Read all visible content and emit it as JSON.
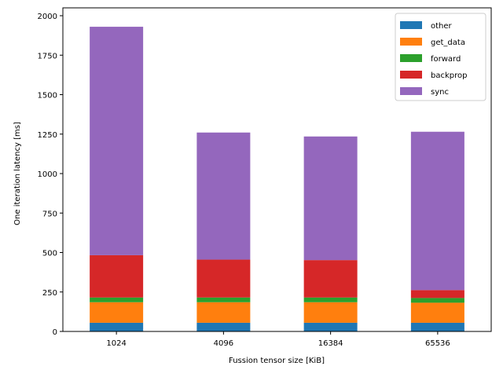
{
  "chart_data": {
    "type": "bar",
    "stacked": true,
    "title": "",
    "xlabel": "Fussion tensor size [KiB]",
    "ylabel": "One iteration latency [ms]",
    "ylim": [
      0,
      2000
    ],
    "yticks": [
      0,
      250,
      500,
      750,
      1000,
      1250,
      1500,
      1750,
      2000
    ],
    "categories": [
      "1024",
      "4096",
      "16384",
      "65536"
    ],
    "legend_position": "top-right",
    "grid": false,
    "series": [
      {
        "name": "other",
        "color": "#1f77b4",
        "values": [
          55,
          55,
          55,
          55
        ]
      },
      {
        "name": "get_data",
        "color": "#ff7f0e",
        "values": [
          130,
          130,
          130,
          127
        ]
      },
      {
        "name": "forward",
        "color": "#2ca02c",
        "values": [
          30,
          30,
          30,
          30
        ]
      },
      {
        "name": "backprop",
        "color": "#d62728",
        "values": [
          268,
          240,
          237,
          50
        ]
      },
      {
        "name": "sync",
        "color": "#9467bd",
        "values": [
          1447,
          805,
          783,
          1003
        ]
      }
    ]
  }
}
